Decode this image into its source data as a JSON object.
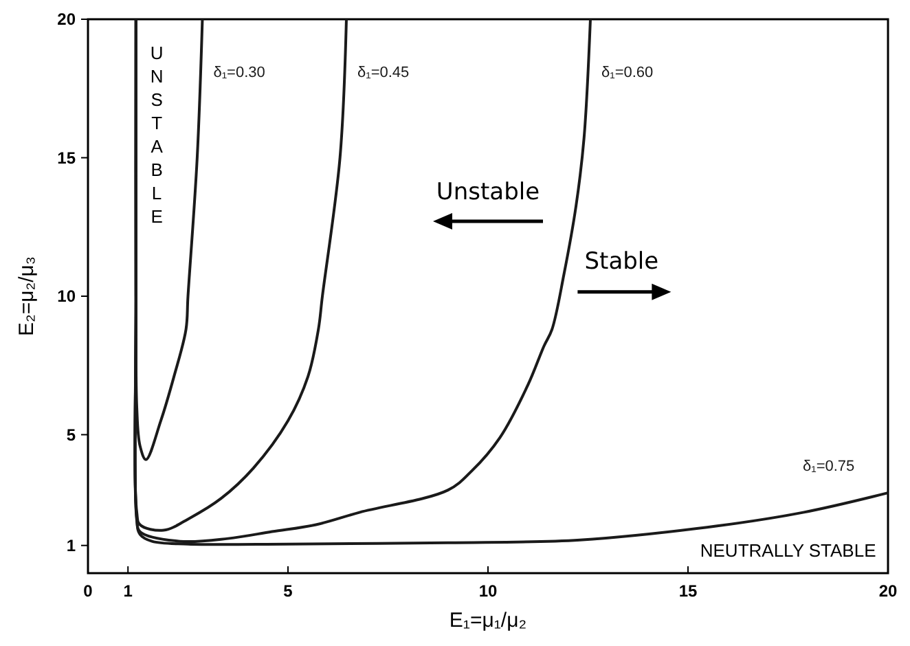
{
  "chart_data": {
    "type": "line",
    "xlabel": "E₁=μ₁/μ₂",
    "ylabel": "E₂=μ₂/μ₃",
    "xlim": [
      0,
      20
    ],
    "ylim": [
      0,
      20
    ],
    "xticks": [
      0,
      1,
      5,
      10,
      15,
      20
    ],
    "yticks": [
      1,
      5,
      10,
      15,
      20
    ],
    "series": [
      {
        "name": "δ₁=0.30",
        "color": "#1a1a1a",
        "x": [
          1.2,
          1.2,
          1.22,
          1.3,
          1.45,
          1.82,
          2.15,
          2.45,
          2.5,
          2.73,
          2.86
        ],
        "values": [
          20,
          10,
          6,
          4.6,
          4.1,
          5.5,
          7.1,
          8.8,
          10,
          15,
          20
        ]
      },
      {
        "name": "δ₁=0.45",
        "color": "#1a1a1a",
        "x": [
          1.2,
          1.2,
          1.22,
          1.3,
          1.89,
          2.56,
          3.33,
          4.14,
          5.0,
          5.5,
          5.76,
          5.86,
          6.3,
          6.46
        ],
        "values": [
          20,
          10,
          2.2,
          1.75,
          1.55,
          2.0,
          2.7,
          3.8,
          5.5,
          7.1,
          8.8,
          10,
          15,
          20
        ]
      },
      {
        "name": "δ₁=0.60",
        "color": "#1a1a1a",
        "x": [
          1.2,
          1.2,
          1.22,
          1.3,
          2.3,
          3.5,
          4.6,
          5.7,
          6.8,
          9.0,
          9.6,
          10.3,
          11.0,
          11.4,
          11.6,
          11.9,
          12.2,
          12.4,
          12.56
        ],
        "values": [
          20,
          10,
          2.0,
          1.5,
          1.15,
          1.25,
          1.5,
          1.75,
          2.2,
          3.0,
          3.7,
          4.9,
          6.8,
          8.2,
          8.8,
          10.8,
          13.25,
          15.7,
          20
        ]
      },
      {
        "name": "δ₁=0.75",
        "color": "#1a1a1a",
        "x": [
          1.2,
          1.2,
          1.22,
          1.3,
          1.6,
          2.5,
          5,
          9,
          12.3,
          15.7,
          17.9,
          20
        ],
        "values": [
          20,
          10,
          1.9,
          1.4,
          1.15,
          1.05,
          1.05,
          1.1,
          1.2,
          1.7,
          2.2,
          2.9
        ]
      }
    ],
    "annotations": [
      "UNSTABLE",
      "Unstable",
      "Stable",
      "NEUTRALLY STABLE"
    ],
    "grid": false
  }
}
